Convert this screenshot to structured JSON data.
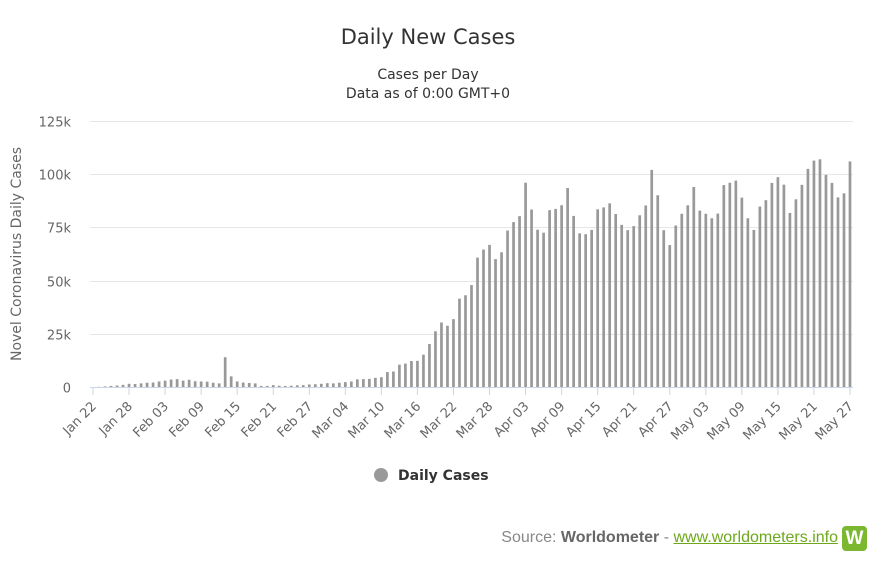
{
  "title": "Daily New Cases",
  "subtitle_line1": "Cases per Day",
  "subtitle_line2": "Data as of 0:00 GMT+0",
  "source": {
    "prefix": "Source: ",
    "name": "Worldometer",
    "separator": " - ",
    "link_text": "www.worldometers.info",
    "logo_letter": "W"
  },
  "chart_data": {
    "type": "bar",
    "title": "Daily New Cases",
    "subtitle": "Cases per Day / Data as of 0:00 GMT+0",
    "ylabel": "Novel Coronavirus Daily Cases",
    "xlabel": "",
    "ylim": [
      0,
      125000
    ],
    "y_ticks": [
      0,
      25000,
      50000,
      75000,
      100000,
      125000
    ],
    "y_tick_labels": [
      "0",
      "25k",
      "50k",
      "75k",
      "100k",
      "125k"
    ],
    "x_tick_labels": [
      "Jan 22",
      "Jan 28",
      "Feb 03",
      "Feb 09",
      "Feb 15",
      "Feb 21",
      "Feb 27",
      "Mar 04",
      "Mar 10",
      "Mar 16",
      "Mar 22",
      "Mar 28",
      "Apr 03",
      "Apr 09",
      "Apr 15",
      "Apr 21",
      "Apr 27",
      "May 03",
      "May 09",
      "May 15",
      "May 21",
      "May 27"
    ],
    "x_tick_every": 6,
    "categories": [
      "Jan 22",
      "Jan 23",
      "Jan 24",
      "Jan 25",
      "Jan 26",
      "Jan 27",
      "Jan 28",
      "Jan 29",
      "Jan 30",
      "Jan 31",
      "Feb 01",
      "Feb 02",
      "Feb 03",
      "Feb 04",
      "Feb 05",
      "Feb 06",
      "Feb 07",
      "Feb 08",
      "Feb 09",
      "Feb 10",
      "Feb 11",
      "Feb 12",
      "Feb 13",
      "Feb 14",
      "Feb 15",
      "Feb 16",
      "Feb 17",
      "Feb 18",
      "Feb 19",
      "Feb 20",
      "Feb 21",
      "Feb 22",
      "Feb 23",
      "Feb 24",
      "Feb 25",
      "Feb 26",
      "Feb 27",
      "Feb 28",
      "Feb 29",
      "Mar 01",
      "Mar 02",
      "Mar 03",
      "Mar 04",
      "Mar 05",
      "Mar 06",
      "Mar 07",
      "Mar 08",
      "Mar 09",
      "Mar 10",
      "Mar 11",
      "Mar 12",
      "Mar 13",
      "Mar 14",
      "Mar 15",
      "Mar 16",
      "Mar 17",
      "Mar 18",
      "Mar 19",
      "Mar 20",
      "Mar 21",
      "Mar 22",
      "Mar 23",
      "Mar 24",
      "Mar 25",
      "Mar 26",
      "Mar 27",
      "Mar 28",
      "Mar 29",
      "Mar 30",
      "Mar 31",
      "Apr 01",
      "Apr 02",
      "Apr 03",
      "Apr 04",
      "Apr 05",
      "Apr 06",
      "Apr 07",
      "Apr 08",
      "Apr 09",
      "Apr 10",
      "Apr 11",
      "Apr 12",
      "Apr 13",
      "Apr 14",
      "Apr 15",
      "Apr 16",
      "Apr 17",
      "Apr 18",
      "Apr 19",
      "Apr 20",
      "Apr 21",
      "Apr 22",
      "Apr 23",
      "Apr 24",
      "Apr 25",
      "Apr 26",
      "Apr 27",
      "Apr 28",
      "Apr 29",
      "Apr 30",
      "May 01",
      "May 02",
      "May 03",
      "May 04",
      "May 05",
      "May 06",
      "May 07",
      "May 08",
      "May 09",
      "May 10",
      "May 11",
      "May 12",
      "May 13",
      "May 14",
      "May 15",
      "May 16",
      "May 17",
      "May 18",
      "May 19",
      "May 20",
      "May 21",
      "May 22",
      "May 23",
      "May 24",
      "May 25",
      "May 26",
      "May 27"
    ],
    "series": [
      {
        "name": "Daily Cases",
        "color": "#999999",
        "values": [
          0,
          100,
          300,
          500,
          700,
          1000,
          1500,
          1400,
          1700,
          2000,
          2100,
          2600,
          3000,
          3500,
          3700,
          3000,
          3400,
          2700,
          2600,
          2500,
          2000,
          1700,
          14000,
          5000,
          2600,
          2100,
          1900,
          1700,
          500,
          500,
          900,
          600,
          500,
          600,
          800,
          900,
          1200,
          1300,
          1500,
          1800,
          1700,
          2000,
          2300,
          2600,
          3600,
          3700,
          3800,
          4300,
          4600,
          7000,
          7300,
          10500,
          11000,
          12200,
          12300,
          15200,
          20200,
          26200,
          30300,
          28800,
          31900,
          41500,
          43100,
          47900,
          60800,
          64600,
          66800,
          60100,
          63300,
          73500,
          77500,
          80300,
          96000,
          83400,
          73900,
          72500,
          83100,
          83700,
          85400,
          93500,
          80400,
          72200,
          71800,
          73800,
          83500,
          84400,
          86300,
          81300,
          76200,
          73700,
          75600,
          80700,
          85300,
          102000,
          90100,
          73700,
          66700,
          75900,
          81400,
          85400,
          94000,
          82900,
          81400,
          79300,
          81500,
          94900,
          96000,
          97000,
          89000,
          79300,
          73800,
          84800,
          87800,
          95900,
          98600,
          95100,
          81800,
          88200,
          95000,
          102500,
          106400,
          107000,
          99700,
          95900,
          89100,
          91000,
          106000
        ]
      }
    ],
    "legend": {
      "position": "bottom-center",
      "entries": [
        "Daily Cases"
      ]
    },
    "grid": "horizontal"
  }
}
